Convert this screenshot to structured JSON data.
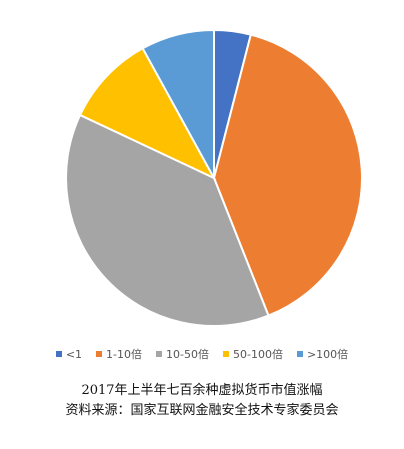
{
  "chart_data": {
    "type": "pie",
    "categories": [
      "<1",
      "1-10倍",
      "10-50倍",
      "50-100倍",
      ">100倍"
    ],
    "values": [
      4,
      40,
      38,
      10,
      8
    ],
    "colors": [
      "#4472c4",
      "#ed7d31",
      "#a5a5a5",
      "#ffc000",
      "#5b9bd5"
    ],
    "legend_position": "bottom",
    "start_angle_deg": 0,
    "direction": "clockwise"
  },
  "legend": {
    "items": [
      {
        "label": "<1",
        "color": "#4472c4"
      },
      {
        "label": "1-10倍",
        "color": "#ed7d31"
      },
      {
        "label": "10-50倍",
        "color": "#a5a5a5"
      },
      {
        "label": "50-100倍",
        "color": "#ffc000"
      },
      {
        "label": ">100倍",
        "color": "#5b9bd5"
      }
    ]
  },
  "caption": {
    "line1": "2017年上半年七百余种虚拟货币市值涨幅",
    "line2": "资料来源：国家互联网金融安全技术专家委员会"
  }
}
